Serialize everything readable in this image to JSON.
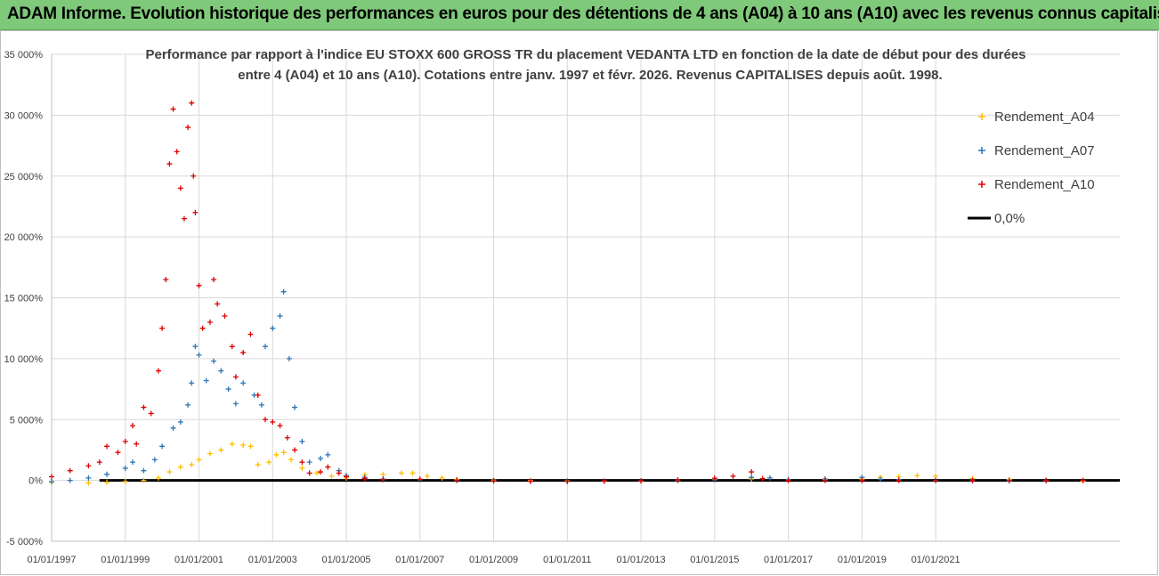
{
  "banner": {
    "text": "ADAM Informe. Evolution historique des performances en euros pour des détentions de 4 ans (A04) à 10 ans (A10) avec les revenus connus capitalisés"
  },
  "colors": {
    "A04": "#ffc000",
    "A07": "#2e75b6",
    "A10": "#e00000",
    "zero": "#000000",
    "grid": "#d9d9d9",
    "banner_bg": "#7fc97a"
  },
  "chart_data": {
    "type": "scatter",
    "title_lines": [
      "Performance par rapport à l'indice EU STOXX 600 GROSS TR  du placement VEDANTA LTD en fonction de la date de début pour des durées",
      "entre 4 (A04) et 10 ans (A10). Cotations entre janv. 1997 et févr. 2026. Revenus CAPITALISES depuis août. 1998."
    ],
    "x_range": [
      1997.0,
      2026.0
    ],
    "x_ticks": [
      {
        "value": 1997,
        "label": "01/01/1997"
      },
      {
        "value": 1999,
        "label": "01/01/1999"
      },
      {
        "value": 2001,
        "label": "01/01/2001"
      },
      {
        "value": 2003,
        "label": "01/01/2003"
      },
      {
        "value": 2005,
        "label": "01/01/2005"
      },
      {
        "value": 2007,
        "label": "01/01/2007"
      },
      {
        "value": 2009,
        "label": "01/01/2009"
      },
      {
        "value": 2011,
        "label": "01/01/2011"
      },
      {
        "value": 2013,
        "label": "01/01/2013"
      },
      {
        "value": 2015,
        "label": "01/01/2015"
      },
      {
        "value": 2017,
        "label": "01/01/2017"
      },
      {
        "value": 2019,
        "label": "01/01/2019"
      },
      {
        "value": 2021,
        "label": "01/01/2021"
      }
    ],
    "y_range": [
      -5000,
      35000
    ],
    "y_ticks": [
      {
        "value": 35000,
        "label": "35 000%"
      },
      {
        "value": 30000,
        "label": "30 000%"
      },
      {
        "value": 25000,
        "label": "25 000%"
      },
      {
        "value": 20000,
        "label": "20 000%"
      },
      {
        "value": 15000,
        "label": "15 000%"
      },
      {
        "value": 10000,
        "label": "10 000%"
      },
      {
        "value": 5000,
        "label": "5 000%"
      },
      {
        "value": 0,
        "label": "0%"
      },
      {
        "value": -5000,
        "label": "-5 000%"
      }
    ],
    "series": [
      {
        "name": "Rendement_A04",
        "color": "#ffc000",
        "points": [
          [
            1997.0,
            -150
          ],
          [
            1998.0,
            -200
          ],
          [
            1998.5,
            -150
          ],
          [
            1999.0,
            -100
          ],
          [
            1999.5,
            0
          ],
          [
            1999.9,
            200
          ],
          [
            2000.2,
            700
          ],
          [
            2000.5,
            1100
          ],
          [
            2000.8,
            1300
          ],
          [
            2001.0,
            1700
          ],
          [
            2001.3,
            2200
          ],
          [
            2001.6,
            2500
          ],
          [
            2001.9,
            3000
          ],
          [
            2002.2,
            2900
          ],
          [
            2002.4,
            2800
          ],
          [
            2002.6,
            1300
          ],
          [
            2002.9,
            1500
          ],
          [
            2003.1,
            2100
          ],
          [
            2003.3,
            2300
          ],
          [
            2003.5,
            1700
          ],
          [
            2003.8,
            1000
          ],
          [
            2004.2,
            600
          ],
          [
            2004.6,
            350
          ],
          [
            2005.0,
            200
          ],
          [
            2005.5,
            450
          ],
          [
            2006.0,
            500
          ],
          [
            2006.5,
            600
          ],
          [
            2006.8,
            600
          ],
          [
            2007.2,
            350
          ],
          [
            2007.6,
            200
          ],
          [
            2008.0,
            80
          ],
          [
            2009.0,
            30
          ],
          [
            2010.0,
            0
          ],
          [
            2011.0,
            -40
          ],
          [
            2012.0,
            -60
          ],
          [
            2013.0,
            -50
          ],
          [
            2014.0,
            0
          ],
          [
            2015.0,
            60
          ],
          [
            2016.0,
            120
          ],
          [
            2017.0,
            30
          ],
          [
            2018.0,
            60
          ],
          [
            2019.0,
            120
          ],
          [
            2019.5,
            250
          ],
          [
            2020.0,
            300
          ],
          [
            2020.5,
            400
          ],
          [
            2021.0,
            350
          ],
          [
            2022.0,
            150
          ],
          [
            2023.0,
            60
          ],
          [
            2024.0,
            0
          ],
          [
            2025.0,
            -40
          ]
        ]
      },
      {
        "name": "Rendement_A07",
        "color": "#2e75b6",
        "points": [
          [
            1997.0,
            -100
          ],
          [
            1997.5,
            0
          ],
          [
            1998.0,
            200
          ],
          [
            1998.5,
            500
          ],
          [
            1999.0,
            1000
          ],
          [
            1999.2,
            1500
          ],
          [
            1999.5,
            800
          ],
          [
            1999.8,
            1700
          ],
          [
            2000.0,
            2800
          ],
          [
            2000.3,
            4300
          ],
          [
            2000.5,
            4800
          ],
          [
            2000.7,
            6200
          ],
          [
            2000.8,
            8000
          ],
          [
            2000.9,
            11000
          ],
          [
            2001.0,
            10300
          ],
          [
            2001.2,
            8200
          ],
          [
            2001.4,
            9800
          ],
          [
            2001.6,
            9000
          ],
          [
            2001.8,
            7500
          ],
          [
            2002.0,
            6300
          ],
          [
            2002.2,
            8000
          ],
          [
            2002.5,
            7000
          ],
          [
            2002.7,
            6200
          ],
          [
            2002.8,
            11000
          ],
          [
            2003.0,
            12500
          ],
          [
            2003.2,
            13500
          ],
          [
            2003.3,
            15500
          ],
          [
            2003.45,
            10000
          ],
          [
            2003.6,
            6000
          ],
          [
            2003.8,
            3200
          ],
          [
            2004.0,
            1500
          ],
          [
            2004.3,
            1800
          ],
          [
            2004.5,
            2100
          ],
          [
            2004.8,
            800
          ],
          [
            2005.0,
            400
          ],
          [
            2005.5,
            250
          ],
          [
            2006.0,
            120
          ],
          [
            2007.0,
            60
          ],
          [
            2008.0,
            0
          ],
          [
            2009.0,
            -40
          ],
          [
            2010.0,
            -60
          ],
          [
            2011.0,
            -80
          ],
          [
            2012.0,
            -60
          ],
          [
            2013.0,
            -30
          ],
          [
            2014.0,
            0
          ],
          [
            2015.0,
            50
          ],
          [
            2016.0,
            250
          ],
          [
            2016.5,
            200
          ],
          [
            2017.0,
            80
          ],
          [
            2018.0,
            120
          ],
          [
            2019.0,
            250
          ],
          [
            2019.5,
            100
          ],
          [
            2020.0,
            50
          ],
          [
            2021.0,
            0
          ],
          [
            2022.0,
            -30
          ],
          [
            2023.0,
            -40
          ],
          [
            2024.0,
            -20
          ]
        ]
      },
      {
        "name": "Rendement_A10",
        "color": "#e00000",
        "points": [
          [
            1997.0,
            300
          ],
          [
            1997.5,
            800
          ],
          [
            1998.0,
            1200
          ],
          [
            1998.3,
            1500
          ],
          [
            1998.5,
            2800
          ],
          [
            1998.8,
            2300
          ],
          [
            1999.0,
            3200
          ],
          [
            1999.2,
            4500
          ],
          [
            1999.3,
            3000
          ],
          [
            1999.5,
            6000
          ],
          [
            1999.7,
            5500
          ],
          [
            1999.9,
            9000
          ],
          [
            2000.0,
            12500
          ],
          [
            2000.1,
            16500
          ],
          [
            2000.2,
            26000
          ],
          [
            2000.3,
            30500
          ],
          [
            2000.4,
            27000
          ],
          [
            2000.5,
            24000
          ],
          [
            2000.6,
            21500
          ],
          [
            2000.7,
            29000
          ],
          [
            2000.8,
            31000
          ],
          [
            2000.85,
            25000
          ],
          [
            2000.9,
            22000
          ],
          [
            2001.0,
            16000
          ],
          [
            2001.1,
            12500
          ],
          [
            2001.3,
            13000
          ],
          [
            2001.4,
            16500
          ],
          [
            2001.5,
            14500
          ],
          [
            2001.7,
            13500
          ],
          [
            2001.9,
            11000
          ],
          [
            2002.0,
            8500
          ],
          [
            2002.2,
            10500
          ],
          [
            2002.4,
            12000
          ],
          [
            2002.6,
            7000
          ],
          [
            2002.8,
            5000
          ],
          [
            2003.0,
            4800
          ],
          [
            2003.2,
            4500
          ],
          [
            2003.4,
            3500
          ],
          [
            2003.6,
            2500
          ],
          [
            2003.8,
            1500
          ],
          [
            2004.0,
            600
          ],
          [
            2004.3,
            700
          ],
          [
            2004.5,
            1100
          ],
          [
            2004.8,
            600
          ],
          [
            2005.0,
            300
          ],
          [
            2005.5,
            150
          ],
          [
            2006.0,
            60
          ],
          [
            2007.0,
            100
          ],
          [
            2008.0,
            30
          ],
          [
            2009.0,
            -40
          ],
          [
            2010.0,
            -70
          ],
          [
            2011.0,
            -80
          ],
          [
            2012.0,
            -60
          ],
          [
            2013.0,
            -40
          ],
          [
            2014.0,
            40
          ],
          [
            2015.0,
            180
          ],
          [
            2015.5,
            350
          ],
          [
            2016.0,
            700
          ],
          [
            2016.3,
            150
          ],
          [
            2017.0,
            0
          ],
          [
            2018.0,
            0
          ],
          [
            2019.0,
            0
          ],
          [
            2020.0,
            0
          ],
          [
            2021.0,
            0
          ],
          [
            2022.0,
            0
          ],
          [
            2023.0,
            0
          ],
          [
            2024.0,
            0
          ],
          [
            2025.0,
            0
          ]
        ]
      }
    ],
    "reference_line": {
      "name": "0,0%",
      "value": 0
    },
    "legend": [
      "Rendement_A04",
      "Rendement_A07",
      "Rendement_A10",
      "0,0%"
    ]
  }
}
